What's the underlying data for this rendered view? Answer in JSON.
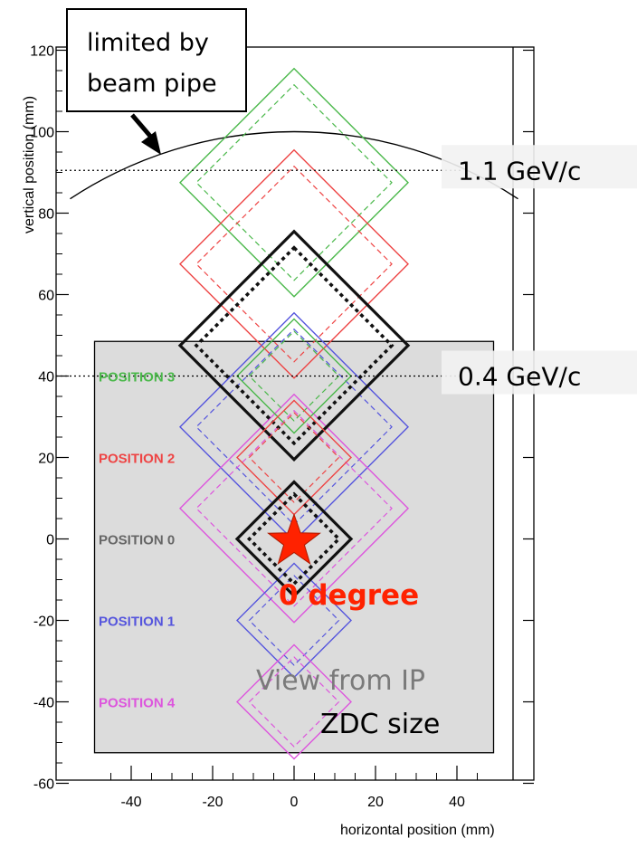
{
  "axes": {
    "x_title": "horizontal position (mm)",
    "y_title": "vertical position (mm)",
    "x_range": [
      -50,
      50
    ],
    "y_range": [
      -60,
      120
    ],
    "x_ticks": [
      -40,
      -20,
      0,
      20,
      40
    ],
    "y_ticks": [
      120,
      100,
      80,
      60,
      40,
      20,
      0,
      -20,
      -40,
      -60
    ]
  },
  "callout": {
    "line1": "limited by",
    "line2": "beam pipe"
  },
  "beam_pipe": {
    "center_y": 0,
    "radius": 100
  },
  "momentum_lines": [
    {
      "label": "1.1 GeV/c",
      "y": 90.5
    },
    {
      "label": "0.4 GeV/c",
      "y": 40
    }
  ],
  "zdc_box": {
    "x_range": [
      -49,
      49
    ],
    "y_range": [
      -52.5,
      48.5
    ],
    "fill": "#dcdcdc",
    "caption": "ZDC size",
    "view_label": "View from IP"
  },
  "beam_spot": {
    "label": "0 degree",
    "x": 0,
    "y": 0,
    "color": "#ff2200"
  },
  "positions": [
    {
      "label": "POSITION 3",
      "color": "#4ab84a",
      "cy": 87.5,
      "outer_half": 28,
      "inner_half": 24
    },
    {
      "label": "POSITION 2",
      "color": "#ee4444",
      "cy": 67.5,
      "outer_half": 28,
      "inner_half": 24
    },
    {
      "label": "POSITION 0",
      "color": "#111111",
      "cy": 47.5,
      "outer_half": 28,
      "inner_half": 24
    },
    {
      "label": "POSITION 1",
      "color": "#5555dd",
      "cy": 27.5,
      "outer_half": 28,
      "inner_half": 24
    },
    {
      "label": "POSITION 4",
      "color": "#dd55dd",
      "cy": 7.5,
      "outer_half": 28,
      "inner_half": 24
    }
  ],
  "small_detectors": [
    {
      "color": "#4ab84a",
      "cy": 40,
      "outer_half": 14,
      "inner_half": 11
    },
    {
      "color": "#ee4444",
      "cy": 20,
      "outer_half": 14,
      "inner_half": 11
    },
    {
      "color": "#111111",
      "cy": 0,
      "outer_half": 14,
      "inner_half": 11
    },
    {
      "color": "#5555dd",
      "cy": -20,
      "outer_half": 14,
      "inner_half": 11
    },
    {
      "color": "#dd55dd",
      "cy": -40,
      "outer_half": 14,
      "inner_half": 11
    }
  ],
  "label_y": [
    40,
    20,
    0,
    -20,
    -40
  ]
}
